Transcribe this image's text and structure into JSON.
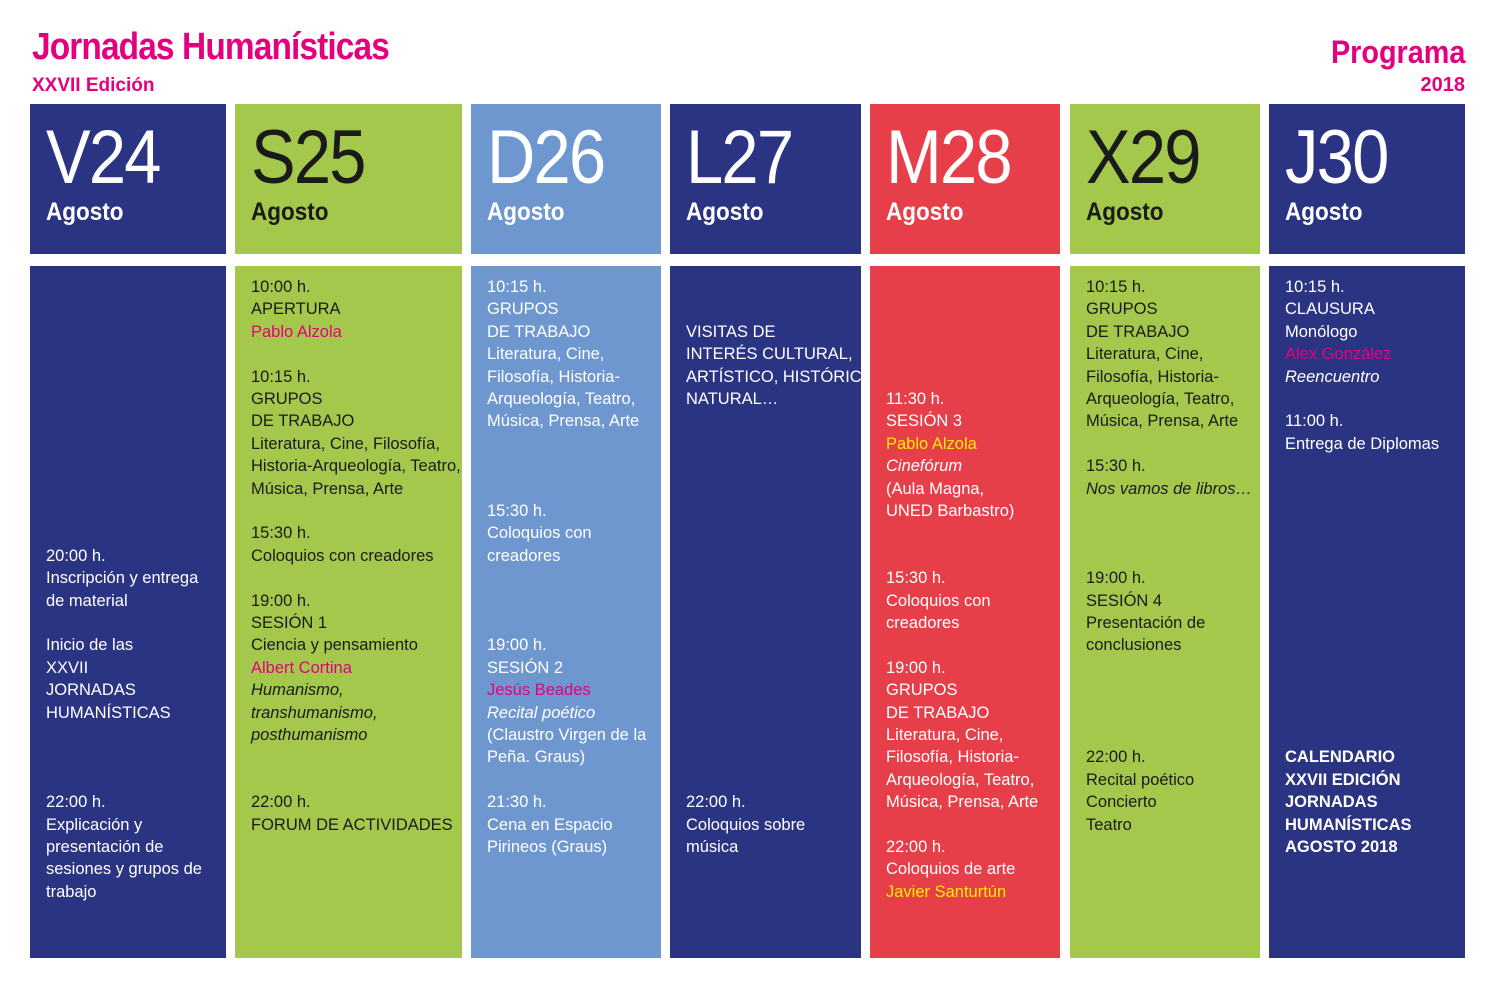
{
  "header": {
    "title": "Jornadas Humanísticas",
    "subtitle": "XXVII Edición",
    "program_label": "Programa",
    "year": "2018"
  },
  "colors": {
    "navy": "#2b3482",
    "green": "#a3c84b",
    "blue": "#6e97d0",
    "red": "#e73f49",
    "magenta": "#e4007d",
    "yellow": "#ffed00"
  },
  "days": [
    {
      "code": "V24",
      "month": "Agosto",
      "color": "navy",
      "lines": [
        {
          "t": "",
          "gap": 12
        },
        {
          "t": "20:00 h."
        },
        {
          "t": "Inscripción y entrega"
        },
        {
          "t": "de material"
        },
        {
          "t": ""
        },
        {
          "t": "Inicio de las"
        },
        {
          "t": "XXVII"
        },
        {
          "t": "JORNADAS"
        },
        {
          "t": "HUMANÍSTICAS"
        },
        {
          "t": "",
          "gap": 3
        },
        {
          "t": "22:00 h."
        },
        {
          "t": "Explicación y"
        },
        {
          "t": "presentación de"
        },
        {
          "t": "sesiones y grupos de"
        },
        {
          "t": "trabajo"
        }
      ]
    },
    {
      "code": "S25",
      "month": "Agosto",
      "color": "green",
      "lines": [
        {
          "t": "10:00 h."
        },
        {
          "t": "APERTURA"
        },
        {
          "t": "Pablo Alzola",
          "s": "pink"
        },
        {
          "t": ""
        },
        {
          "t": "10:15 h."
        },
        {
          "t": "GRUPOS"
        },
        {
          "t": "DE TRABAJO"
        },
        {
          "t": "Literatura, Cine, Filosofía,"
        },
        {
          "t": "Historia-Arqueología, Teatro,"
        },
        {
          "t": "Música, Prensa, Arte"
        },
        {
          "t": ""
        },
        {
          "t": "15:30 h."
        },
        {
          "t": "Coloquios con creadores"
        },
        {
          "t": ""
        },
        {
          "t": "19:00 h."
        },
        {
          "t": "SESIÓN 1"
        },
        {
          "t": "Ciencia y pensamiento"
        },
        {
          "t": "Albert Cortina",
          "s": "pink"
        },
        {
          "t": "Humanismo,",
          "s": "it"
        },
        {
          "t": "transhumanismo,",
          "s": "it"
        },
        {
          "t": "posthumanismo",
          "s": "it"
        },
        {
          "t": "",
          "gap": 2
        },
        {
          "t": "22:00 h."
        },
        {
          "t": "FORUM DE ACTIVIDADES"
        }
      ]
    },
    {
      "code": "D26",
      "month": "Agosto",
      "color": "blue",
      "lines": [
        {
          "t": "10:15 h."
        },
        {
          "t": "GRUPOS"
        },
        {
          "t": "DE TRABAJO"
        },
        {
          "t": "Literatura, Cine,"
        },
        {
          "t": "Filosofía, Historia-"
        },
        {
          "t": "Arqueología, Teatro,"
        },
        {
          "t": "Música, Prensa, Arte"
        },
        {
          "t": "",
          "gap": 3
        },
        {
          "t": "15:30 h."
        },
        {
          "t": "Coloquios con"
        },
        {
          "t": "creadores"
        },
        {
          "t": "",
          "gap": 3
        },
        {
          "t": "19:00 h."
        },
        {
          "t": "SESIÓN 2"
        },
        {
          "t": "Jesús Beades",
          "s": "pink"
        },
        {
          "t": "Recital poético",
          "s": "it"
        },
        {
          "t": "(Claustro Virgen de la"
        },
        {
          "t": "Peña. Graus)"
        },
        {
          "t": ""
        },
        {
          "t": "21:30 h."
        },
        {
          "t": "Cena en Espacio"
        },
        {
          "t": "Pirineos (Graus)"
        }
      ]
    },
    {
      "code": "L27",
      "month": "Agosto",
      "color": "navy",
      "lines": [
        {
          "t": "",
          "gap": 2
        },
        {
          "t": "VISITAS DE"
        },
        {
          "t": "INTERÉS CULTURAL,"
        },
        {
          "t": "ARTÍSTICO, HISTÓRICO,"
        },
        {
          "t": "NATURAL…"
        },
        {
          "t": "",
          "gap": 17
        },
        {
          "t": "22:00 h."
        },
        {
          "t": "Coloquios sobre"
        },
        {
          "t": "música"
        }
      ]
    },
    {
      "code": "M28",
      "month": "Agosto",
      "color": "red",
      "lines": [
        {
          "t": "",
          "gap": 5
        },
        {
          "t": "11:30 h."
        },
        {
          "t": "SESIÓN 3"
        },
        {
          "t": "Pablo Alzola",
          "s": "yellow"
        },
        {
          "t": "Cinefórum",
          "s": "it"
        },
        {
          "t": "(Aula Magna,"
        },
        {
          "t": "UNED Barbastro)"
        },
        {
          "t": "",
          "gap": 2
        },
        {
          "t": "15:30 h."
        },
        {
          "t": "Coloquios con"
        },
        {
          "t": "creadores"
        },
        {
          "t": ""
        },
        {
          "t": "19:00 h."
        },
        {
          "t": "GRUPOS"
        },
        {
          "t": "DE TRABAJO"
        },
        {
          "t": "Literatura, Cine,"
        },
        {
          "t": "Filosofía, Historia-"
        },
        {
          "t": "Arqueología, Teatro,"
        },
        {
          "t": "Música, Prensa, Arte"
        },
        {
          "t": ""
        },
        {
          "t": "22:00 h."
        },
        {
          "t": "Coloquios de arte"
        },
        {
          "t": "Javier Santurtún",
          "s": "yellow"
        }
      ]
    },
    {
      "code": "X29",
      "month": "Agosto",
      "color": "green",
      "lines": [
        {
          "t": "10:15 h."
        },
        {
          "t": "GRUPOS"
        },
        {
          "t": "DE TRABAJO"
        },
        {
          "t": "Literatura, Cine,"
        },
        {
          "t": "Filosofía, Historia-"
        },
        {
          "t": "Arqueología, Teatro,"
        },
        {
          "t": "Música, Prensa, Arte"
        },
        {
          "t": ""
        },
        {
          "t": "15:30 h."
        },
        {
          "t": "Nos vamos de libros…",
          "s": "it"
        },
        {
          "t": "",
          "gap": 3
        },
        {
          "t": "19:00 h."
        },
        {
          "t": "SESIÓN 4"
        },
        {
          "t": "Presentación de"
        },
        {
          "t": "conclusiones"
        },
        {
          "t": "",
          "gap": 4
        },
        {
          "t": "22:00 h."
        },
        {
          "t": "Recital poético"
        },
        {
          "t": "Concierto"
        },
        {
          "t": "Teatro"
        }
      ]
    },
    {
      "code": "J30",
      "month": "Agosto",
      "color": "navy",
      "lines": [
        {
          "t": "10:15 h."
        },
        {
          "t": "CLAUSURA"
        },
        {
          "t": "Monólogo"
        },
        {
          "t": "Alex González",
          "s": "pink"
        },
        {
          "t": "Reencuentro",
          "s": "it"
        },
        {
          "t": ""
        },
        {
          "t": "11:00 h."
        },
        {
          "t": "Entrega de Diplomas"
        },
        {
          "t": "",
          "gap": 13
        },
        {
          "t": "CALENDARIO",
          "s": "bold"
        },
        {
          "t": "XXVII EDICIÓN",
          "s": "bold"
        },
        {
          "t": "JORNADAS",
          "s": "bold"
        },
        {
          "t": "HUMANÍSTICAS",
          "s": "bold"
        },
        {
          "t": "AGOSTO 2018",
          "s": "bold"
        }
      ]
    }
  ]
}
